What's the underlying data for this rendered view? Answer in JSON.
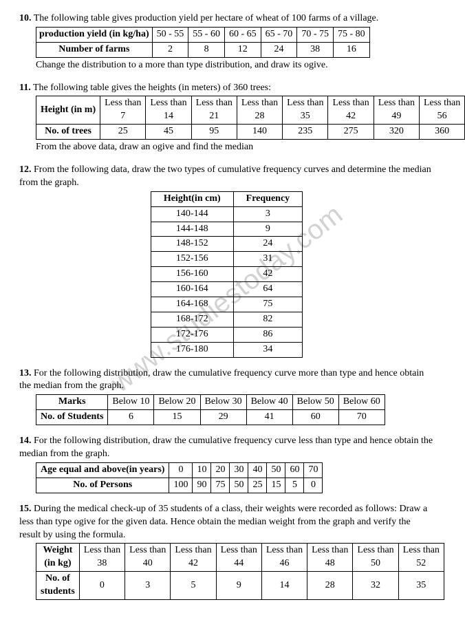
{
  "watermark": "www.studiestoday.com",
  "q10": {
    "num": "10.",
    "text": "The following table gives production yield per hectare of wheat of 100 farms of a village.",
    "after": "Change the distribution to a more than type distribution, and draw its ogive.",
    "row_h": [
      "production yield (in kg/ha)",
      "50 - 55",
      "55 - 60",
      "60 - 65",
      "65 - 70",
      "70 - 75",
      "75 - 80"
    ],
    "row_d": [
      "Number of farms",
      "2",
      "8",
      "12",
      "24",
      "38",
      "16"
    ]
  },
  "q11": {
    "num": "11.",
    "text": "The following table gives the heights (in meters) of 360 trees:",
    "after": "From the above data, draw an ogive and find the median",
    "r1_lead": "Height (in m)",
    "r1_vals": [
      "Less than 7",
      "Less than 14",
      "Less than 21",
      "Less than 28",
      "Less than 35",
      "Less than 42",
      "Less than 49",
      "Less than 56"
    ],
    "r2_lead": "No. of trees",
    "r2_vals": [
      "25",
      "45",
      "95",
      "140",
      "235",
      "275",
      "320",
      "360"
    ]
  },
  "q12": {
    "num": "12.",
    "text": "From the following data, draw the two types of cumulative frequency curves and determine the median from the graph.",
    "h1": "Height(in cm)",
    "h2": "Frequency",
    "rows": [
      [
        "140-144",
        "3"
      ],
      [
        "144-148",
        "9"
      ],
      [
        "148-152",
        "24"
      ],
      [
        "152-156",
        "31"
      ],
      [
        "156-160",
        "42"
      ],
      [
        "160-164",
        "64"
      ],
      [
        "164-168",
        "75"
      ],
      [
        "168-172",
        "82"
      ],
      [
        "172-176",
        "86"
      ],
      [
        "176-180",
        "34"
      ]
    ]
  },
  "q13": {
    "num": "13.",
    "text": "For the following distribution, draw the cumulative frequency curve more than type and hence obtain the median from the graph.",
    "row_h": [
      "Marks",
      "Below 10",
      "Below 20",
      "Below 30",
      "Below 40",
      "Below 50",
      "Below 60"
    ],
    "row_d": [
      "No. of Students",
      "6",
      "15",
      "29",
      "41",
      "60",
      "70"
    ]
  },
  "q14": {
    "num": "14.",
    "text": "For the following distribution, draw the cumulative frequency curve less than type and hence obtain the median from the graph.",
    "row_h": [
      "Age equal and above(in years)",
      "0",
      "10",
      "20",
      "30",
      "40",
      "50",
      "60",
      "70"
    ],
    "row_d": [
      "No. of Persons",
      "100",
      "90",
      "75",
      "50",
      "25",
      "15",
      "5",
      "0"
    ]
  },
  "q15": {
    "num": "15.",
    "text": "During the medical check-up of 35 students of a class, their weights were recorded as follows: Draw a less than type ogive for the given data. Hence obtain the median weight from the graph and verify the result by using the formula.",
    "r1_lead": "Weight (in kg)",
    "r1_vals": [
      "Less than 38",
      "Less than 40",
      "Less than 42",
      "Less than 44",
      "Less than 46",
      "Less than 48",
      "Less than 50",
      "Less than 52"
    ],
    "r2_lead": "No. of students",
    "r2_vals": [
      "0",
      "3",
      "5",
      "9",
      "14",
      "28",
      "32",
      "35"
    ]
  }
}
